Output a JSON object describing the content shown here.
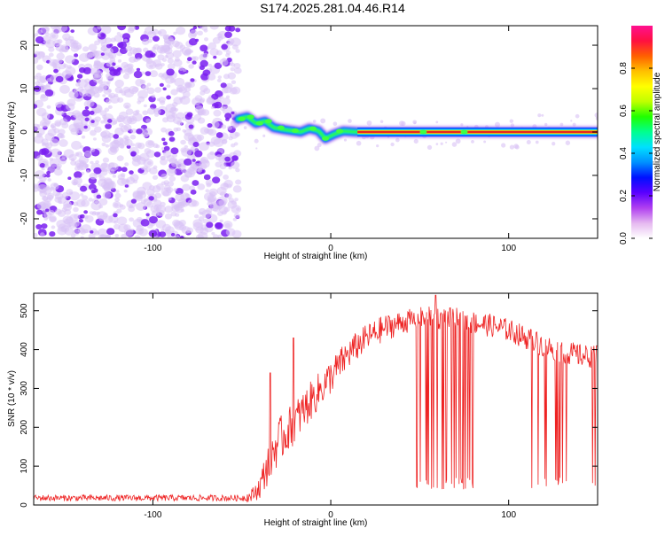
{
  "title": "S174.2025.281.04.46.R14",
  "colors": {
    "background": "#ffffff",
    "axis": "#000000",
    "snr_line": "#ee2222",
    "noise_light": "#d9c2f5",
    "noise_dark": "#7a1ff0",
    "ridge_core": "#e8261e",
    "ridge_edge": "#1d7bf0"
  },
  "chart_data": [
    {
      "type": "heatmap",
      "title": "S174.2025.281.04.46.R14",
      "xlabel": "Height of straight line (km)",
      "ylabel": "Frequency (Hz)",
      "xlim": [
        -167,
        150
      ],
      "ylim": [
        -24.5,
        24.5
      ],
      "xticks": [
        -100,
        0,
        100
      ],
      "yticks": [
        -20,
        -10,
        0,
        10,
        20
      ],
      "grid": false,
      "colorbar": {
        "label": "Normalized spectral amplitude",
        "range": [
          0,
          1
        ],
        "ticks": [
          "0.0",
          "0.2",
          "0.4",
          "0.6",
          "0.8"
        ],
        "colormap": [
          "#ffffff",
          "#e5b8f0",
          "#b040f0",
          "#5a00ff",
          "#0010ff",
          "#0090ff",
          "#00e0ff",
          "#00ff90",
          "#20ff00",
          "#c0ff00",
          "#ffff00",
          "#ffc000",
          "#ff6000",
          "#ff1040",
          "#ff1090"
        ]
      },
      "regions": [
        {
          "name": "noise",
          "x_range": [
            -167,
            -52
          ],
          "freq_range": [
            -24.5,
            24.5
          ],
          "amplitude": [
            0.0,
            0.25
          ]
        },
        {
          "name": "onset",
          "x_range": [
            -52,
            15
          ],
          "freq_range": [
            -2,
            4
          ],
          "amplitude": [
            0.2,
            0.5
          ]
        },
        {
          "name": "tone",
          "x_range": [
            15,
            150
          ],
          "freq_center": 0,
          "amplitude_center": 0.95,
          "amplitude_edge": 0.25
        }
      ],
      "ridge": {
        "x": [
          -52,
          -47,
          -42,
          -37,
          -32,
          -27,
          -22,
          -17,
          -12,
          -7,
          -3,
          2,
          7,
          15,
          150
        ],
        "freq": [
          3,
          3.5,
          2,
          2.5,
          1,
          0.6,
          0.3,
          0.0,
          0.8,
          0.3,
          -1.5,
          -0.5,
          0.2,
          0,
          0
        ]
      }
    },
    {
      "type": "line",
      "title": "",
      "xlabel": "Height of straight line (km)",
      "ylabel": "SNR (10 * v/v)",
      "xlim": [
        -167,
        150
      ],
      "ylim": [
        0,
        545
      ],
      "xticks": [
        -100,
        0,
        100
      ],
      "yticks": [
        0,
        100,
        200,
        300,
        400,
        500
      ],
      "grid": false,
      "series": [
        {
          "color": "#ee2222",
          "envelope_x": [
            -167,
            -50,
            -45,
            -40,
            -35,
            -30,
            -20,
            -10,
            0,
            10,
            20,
            30,
            40,
            50,
            60,
            70,
            80,
            90,
            100,
            110,
            120,
            130,
            140,
            150
          ],
          "envelope_y": [
            18,
            18,
            22,
            45,
            110,
            160,
            215,
            275,
            330,
            390,
            430,
            455,
            470,
            480,
            482,
            478,
            470,
            462,
            450,
            430,
            410,
            395,
            385,
            380
          ],
          "noise_amplitude": [
            8,
            8,
            15,
            30,
            55,
            60,
            55,
            50,
            45,
            40,
            35,
            35,
            30,
            30,
            30,
            30,
            30,
            30,
            30,
            30,
            30,
            30,
            30,
            30
          ],
          "dropouts_x_range": [
            [
              48,
              80
            ],
            [
              112,
              134
            ],
            [
              147,
              150
            ]
          ],
          "dropout_floor": [
            40,
            70
          ],
          "spikes_up": [
            [
              -34,
              340
            ],
            [
              -21,
              430
            ],
            [
              59,
              540
            ]
          ]
        }
      ]
    }
  ]
}
